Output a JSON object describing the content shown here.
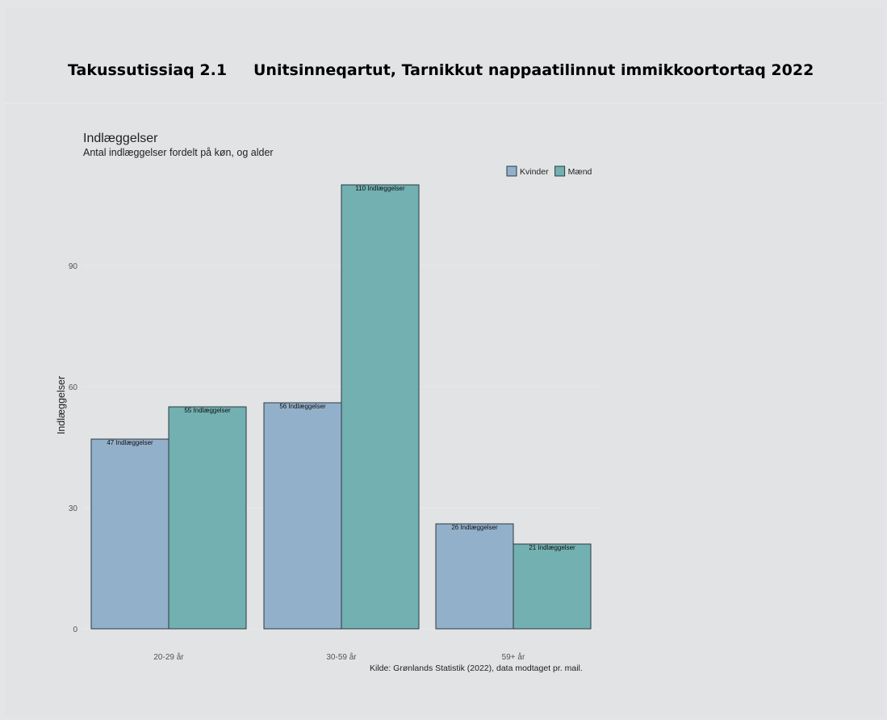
{
  "caption": {
    "number": "Takussutissiaq 2.1",
    "title": "Unitsinneqartut, Tarnikkut nappaatilinnut immikkoortortaq 2022"
  },
  "chart_data": {
    "type": "bar",
    "title": "Indlæggelser",
    "subtitle": "Antal indlæggelser fordelt på køn, og alder",
    "ylabel": "Indlæggelser",
    "xlabel": "",
    "categories": [
      "20-29 år",
      "30-59 år",
      "59+ år"
    ],
    "series": [
      {
        "name": "Kvinder",
        "values": [
          47,
          56,
          26
        ],
        "color": "#93b0cb",
        "labels": [
          "47 Indlæggelser",
          "56 Indlæggelser",
          "26 Indlæggelser"
        ]
      },
      {
        "name": "Mænd",
        "values": [
          55,
          110,
          21
        ],
        "color": "#72b0b1",
        "labels": [
          "55 Indlæggelser",
          "110 Indlæggelser",
          "21 Indlæggelser"
        ]
      }
    ],
    "yticks": [
      0,
      30,
      60,
      90
    ],
    "ylim": [
      0,
      110
    ],
    "grid": true,
    "legend_position": "top-right",
    "source": "Kilde: Grønlands Statistik (2022), data modtaget pr. mail."
  }
}
